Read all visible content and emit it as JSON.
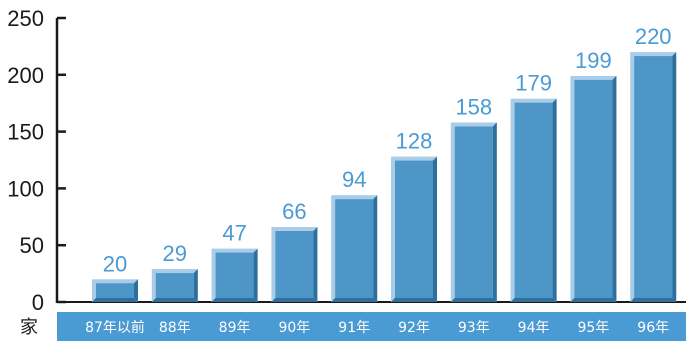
{
  "chart_data": {
    "type": "bar",
    "categories": [
      "87年以前",
      "88年",
      "89年",
      "90年",
      "91年",
      "92年",
      "93年",
      "94年",
      "95年",
      "96年"
    ],
    "values": [
      20,
      29,
      47,
      66,
      94,
      128,
      158,
      179,
      199,
      220
    ],
    "unit": "家",
    "yticks": [
      "0",
      "50",
      "100",
      "150",
      "200",
      "250"
    ],
    "ylim": [
      0,
      250
    ],
    "grid": false,
    "colors": {
      "bar": "#4e96c8",
      "bar_light": "#a9cde8",
      "bar_dark": "#2f6f9e",
      "label": "#4a9ad4",
      "band": "#4a9ad4"
    }
  }
}
